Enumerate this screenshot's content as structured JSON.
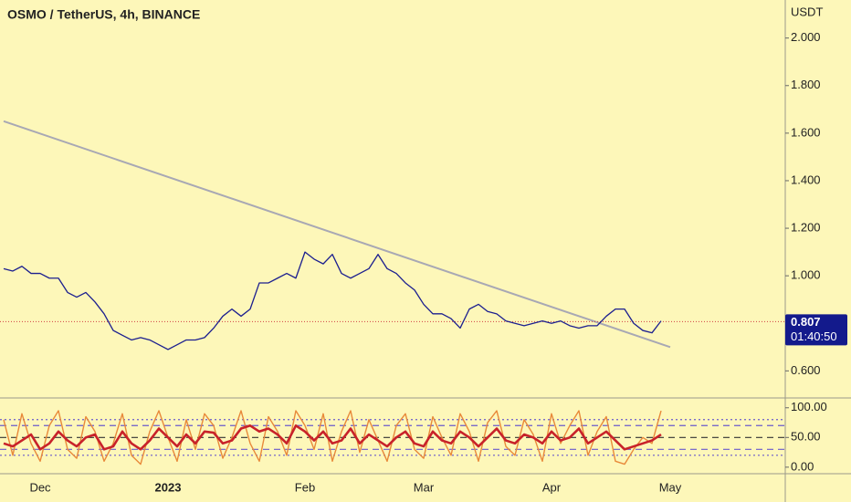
{
  "chart_data": [
    {
      "type": "line",
      "title": "OSMO / TetherUS, 4h, BINANCE",
      "y_unit": "USDT",
      "categories": [
        null,
        null,
        null,
        null,
        "Dec",
        null,
        null,
        null,
        null,
        null,
        null,
        null,
        null,
        null,
        null,
        null,
        null,
        null,
        "2023",
        null,
        null,
        null,
        null,
        null,
        null,
        null,
        null,
        null,
        null,
        null,
        null,
        null,
        null,
        "Feb",
        null,
        null,
        null,
        null,
        null,
        null,
        null,
        null,
        null,
        null,
        null,
        null,
        "Mar",
        null,
        null,
        null,
        null,
        null,
        null,
        null,
        null,
        null,
        null,
        null,
        null,
        null,
        "Apr",
        null,
        null,
        null,
        null,
        null,
        null,
        null,
        null,
        null,
        null,
        null,
        null,
        "May"
      ],
      "values": [
        1.03,
        1.02,
        1.04,
        1.01,
        1.01,
        0.99,
        0.99,
        0.93,
        0.91,
        0.93,
        0.89,
        0.84,
        0.77,
        0.75,
        0.73,
        0.74,
        0.73,
        0.71,
        0.69,
        0.71,
        0.73,
        0.73,
        0.74,
        0.78,
        0.83,
        0.86,
        0.83,
        0.86,
        0.97,
        0.97,
        0.99,
        1.01,
        0.99,
        1.1,
        1.07,
        1.05,
        1.09,
        1.01,
        0.99,
        1.01,
        1.03,
        1.09,
        1.03,
        1.01,
        0.97,
        0.94,
        0.88,
        0.84,
        0.84,
        0.82,
        0.78,
        0.86,
        0.88,
        0.85,
        0.84,
        0.81,
        0.8,
        0.79,
        0.8,
        0.81,
        0.8,
        0.81,
        0.79,
        0.78,
        0.79,
        0.79,
        0.83,
        0.86,
        0.86,
        0.8,
        0.77,
        0.76,
        0.81,
        null
      ],
      "color": "#1c1f8f",
      "ylim": [
        0.49,
        2.16
      ],
      "yticks": [
        {
          "value": 0.6,
          "label": "0.600"
        },
        {
          "value": 1,
          "label": "1.000"
        },
        {
          "value": 1.2,
          "label": "1.200"
        },
        {
          "value": 1.4,
          "label": "1.400"
        },
        {
          "value": 1.6,
          "label": "1.600"
        },
        {
          "value": 1.8,
          "label": "1.800"
        },
        {
          "value": 2,
          "label": "2.000"
        }
      ],
      "trendline": [
        1.65,
        0.7
      ],
      "trendline_color": "#a8a8b4",
      "last_price": {
        "value": 0.807,
        "label": "0.807"
      },
      "countdown": "01:40:50",
      "last_price_color": "#131a8c"
    },
    {
      "type": "line",
      "series": [
        {
          "color": "#e8893a",
          "values": [
            80,
            20,
            90,
            40,
            10,
            70,
            95,
            30,
            15,
            85,
            60,
            10,
            40,
            90,
            20,
            5,
            60,
            95,
            50,
            10,
            80,
            30,
            90,
            70,
            15,
            50,
            95,
            40,
            10,
            85,
            60,
            20,
            95,
            70,
            30,
            90,
            10,
            60,
            95,
            25,
            80,
            45,
            10,
            70,
            90,
            30,
            15,
            85,
            50,
            20,
            90,
            60,
            10,
            75,
            95,
            35,
            20,
            80,
            55,
            10,
            90,
            40,
            70,
            95,
            20,
            60,
            85,
            10,
            5,
            30,
            50,
            40,
            95,
            null
          ]
        },
        {
          "color": "#c8222a",
          "values": [
            40,
            35,
            45,
            55,
            30,
            40,
            60,
            45,
            35,
            50,
            55,
            30,
            35,
            60,
            40,
            30,
            45,
            65,
            50,
            35,
            55,
            40,
            60,
            58,
            40,
            45,
            65,
            70,
            60,
            65,
            55,
            40,
            70,
            60,
            45,
            60,
            40,
            45,
            65,
            40,
            55,
            45,
            35,
            50,
            60,
            40,
            35,
            60,
            45,
            40,
            60,
            50,
            35,
            50,
            65,
            45,
            40,
            55,
            50,
            40,
            60,
            45,
            50,
            65,
            40,
            50,
            60,
            45,
            30,
            35,
            40,
            45,
            55,
            null
          ]
        }
      ],
      "ylim": [
        -11,
        115
      ],
      "yticks": [
        {
          "value": 0,
          "label": "0.00"
        },
        {
          "value": 50,
          "label": "50.00"
        },
        {
          "value": 100,
          "label": "100.00"
        }
      ],
      "levels": [
        80,
        70,
        50,
        30,
        20
      ]
    }
  ]
}
